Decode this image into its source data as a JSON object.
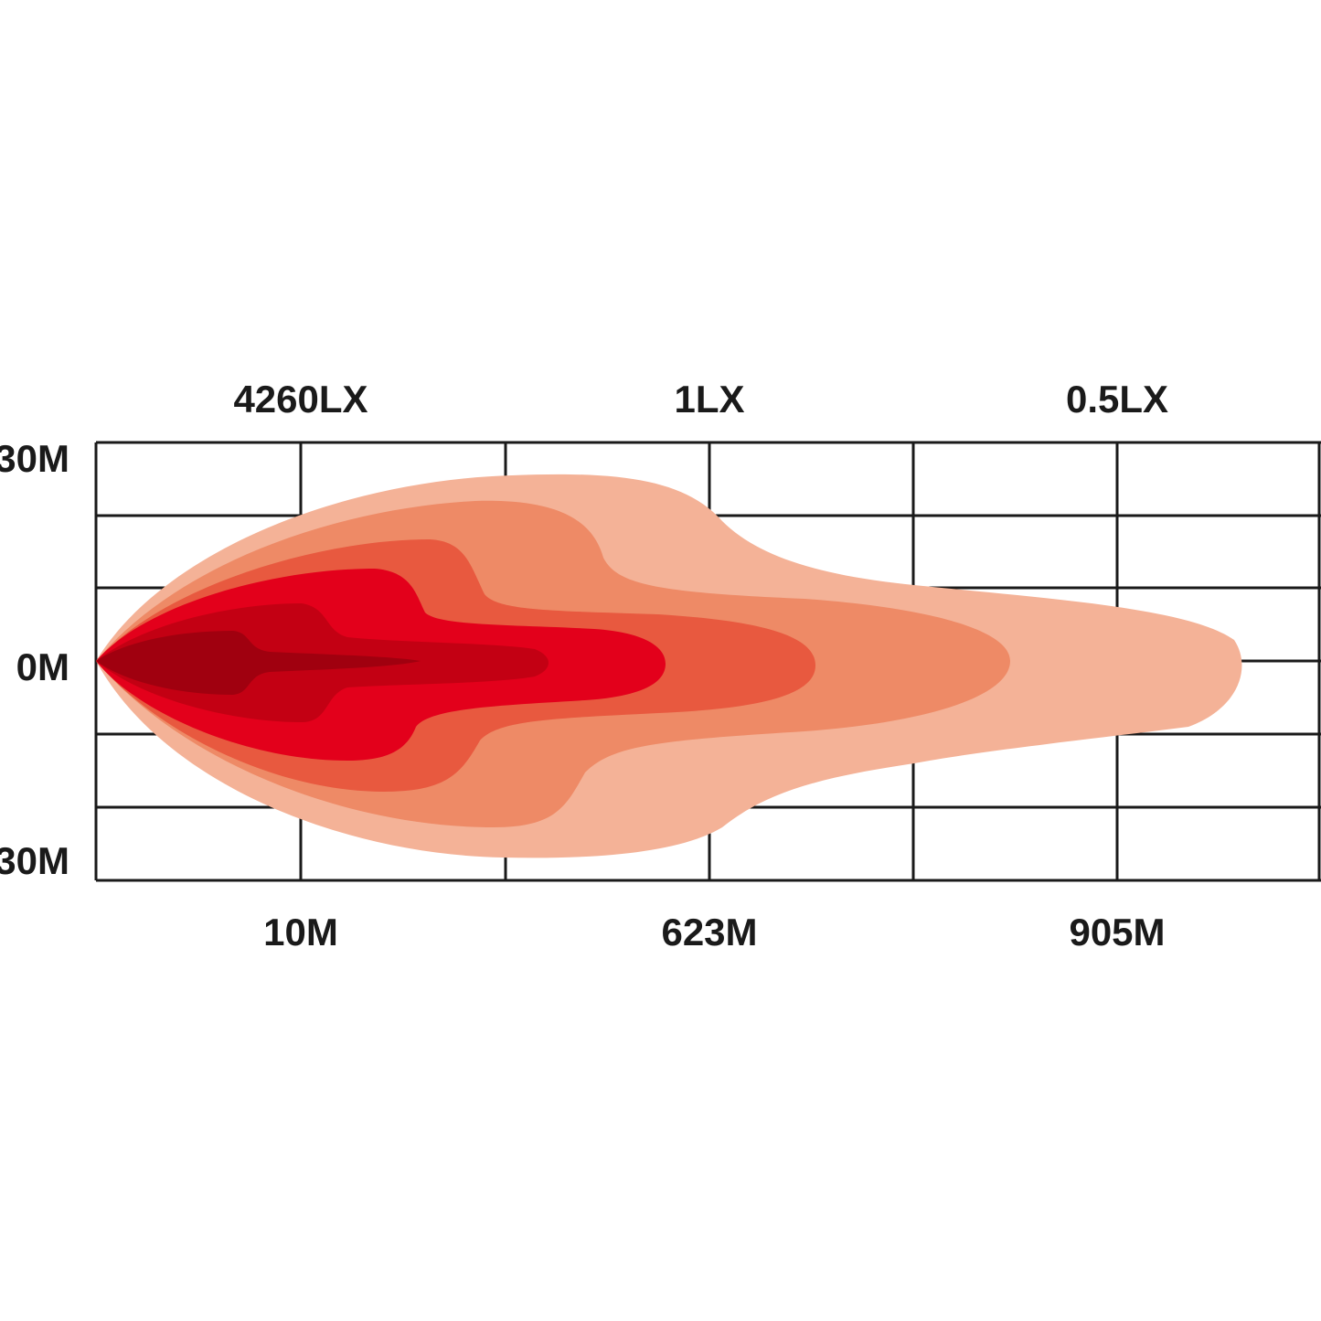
{
  "top_labels": [
    "4260LX",
    "1LX",
    "0.5LX"
  ],
  "left_labels": [
    "30M",
    "0M",
    "30M"
  ],
  "bottom_labels": [
    "10M",
    "623M",
    "905M"
  ]
}
